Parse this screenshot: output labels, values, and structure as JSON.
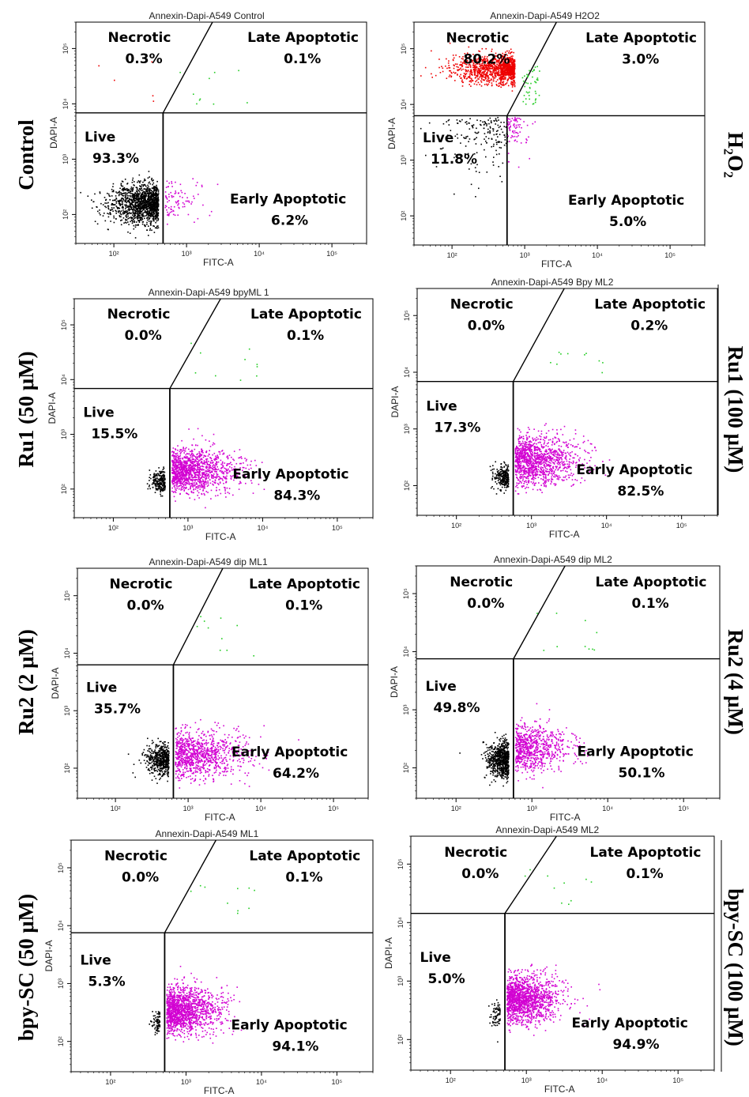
{
  "chart_data": {
    "type": "scatter",
    "x_axis_label": "FITC-A",
    "y_axis_label": "DAPI-A",
    "scale": "log",
    "x_range": [
      30,
      300000
    ],
    "y_range": [
      30,
      300000
    ],
    "x_ticks": [
      "10²",
      "10³",
      "10⁴",
      "10⁵"
    ],
    "y_ticks": [
      "10²",
      "10³",
      "10⁴",
      "10⁵"
    ],
    "quadrant_names": {
      "necrotic": "Necrotic",
      "late": "Late Apoptotic",
      "live": "Live",
      "early": "Early Apoptotic"
    },
    "colors": {
      "live": "#000000",
      "early": "#d200d2",
      "necrotic": "#ee0000",
      "late": "#22cc22"
    },
    "row_labels": [
      "Control",
      "Ru1 (50 μM)",
      "Ru2 (2 μM)",
      "bpy-SC (50 μM)"
    ],
    "right_labels": [
      "H₂O₂",
      "Ru1 (100 μM)",
      "Ru2 (4 μM)",
      "bpy-SC (100 μM)"
    ],
    "panels": [
      {
        "title": "Annexin-Dapi-A549 Control",
        "necrotic": "0.3%",
        "late": "0.1%",
        "live": "93.3%",
        "early": "6.2%",
        "fractions": {
          "necrotic": 0.003,
          "late": 0.001,
          "live": 0.933,
          "early": 0.062
        }
      },
      {
        "title": "Annexin-Dapi-A549 H2O2",
        "necrotic": "80.2%",
        "late": "3.0%",
        "live": "11.8%",
        "early": "5.0%",
        "fractions": {
          "necrotic": 0.802,
          "late": 0.03,
          "live": 0.118,
          "early": 0.05
        }
      },
      {
        "title": "Annexin-Dapi-A549 bpyML 1",
        "necrotic": "0.0%",
        "late": "0.1%",
        "live": "15.5%",
        "early": "84.3%",
        "fractions": {
          "necrotic": 0.0,
          "late": 0.001,
          "live": 0.155,
          "early": 0.843
        }
      },
      {
        "title": "Annexin-Dapi-A549 Bpy ML2",
        "necrotic": "0.0%",
        "late": "0.2%",
        "live": "17.3%",
        "early": "82.5%",
        "fractions": {
          "necrotic": 0.0,
          "late": 0.002,
          "live": 0.173,
          "early": 0.825
        }
      },
      {
        "title": "Annexin-Dapi-A549 dip ML1",
        "necrotic": "0.0%",
        "late": "0.1%",
        "live": "35.7%",
        "early": "64.2%",
        "fractions": {
          "necrotic": 0.0,
          "late": 0.001,
          "live": 0.357,
          "early": 0.642
        }
      },
      {
        "title": "Annexin-Dapi-A549 dip ML2",
        "necrotic": "0.0%",
        "late": "0.1%",
        "live": "49.8%",
        "early": "50.1%",
        "fractions": {
          "necrotic": 0.0,
          "late": 0.001,
          "live": 0.498,
          "early": 0.501
        }
      },
      {
        "title": "Annexin-Dapi-A549 ML1",
        "necrotic": "0.0%",
        "late": "0.1%",
        "live": "5.3%",
        "early": "94.1%",
        "fractions": {
          "necrotic": 0.0,
          "late": 0.001,
          "live": 0.053,
          "early": 0.941
        }
      },
      {
        "title": "Annexin-Dapi-A549 ML2",
        "necrotic": "0.0%",
        "late": "0.1%",
        "live": "5.0%",
        "early": "94.9%",
        "fractions": {
          "necrotic": 0.0,
          "late": 0.001,
          "live": 0.05,
          "early": 0.949
        }
      }
    ]
  }
}
